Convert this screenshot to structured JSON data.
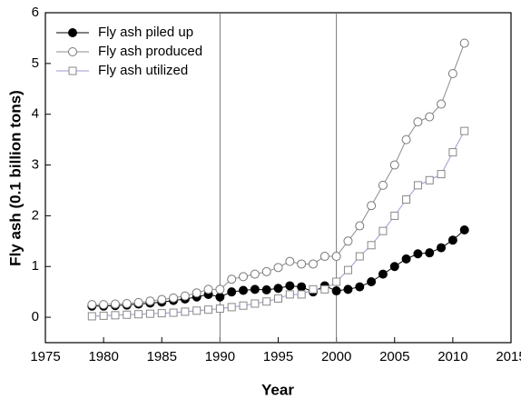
{
  "chart_data": {
    "type": "line",
    "x_label": "Year",
    "y_label": "Fly ash (0.1 billion tons)",
    "x": [
      1979,
      1980,
      1981,
      1982,
      1983,
      1984,
      1985,
      1986,
      1987,
      1988,
      1989,
      1990,
      1991,
      1992,
      1993,
      1994,
      1995,
      1996,
      1997,
      1998,
      1999,
      2000,
      2001,
      2002,
      2003,
      2004,
      2005,
      2006,
      2007,
      2008,
      2009,
      2010,
      2011
    ],
    "series": [
      {
        "name": "Fly ash piled up",
        "color": "#000000",
        "marker": "circle",
        "filled": true,
        "values": [
          0.22,
          0.22,
          0.23,
          0.24,
          0.26,
          0.28,
          0.3,
          0.33,
          0.36,
          0.4,
          0.45,
          0.4,
          0.5,
          0.53,
          0.55,
          0.54,
          0.57,
          0.62,
          0.6,
          0.5,
          0.62,
          0.52,
          0.55,
          0.6,
          0.7,
          0.85,
          1.0,
          1.15,
          1.25,
          1.27,
          1.37,
          1.52,
          1.72
        ]
      },
      {
        "name": "Fly ash produced",
        "color": "#8c8c8c",
        "marker": "circle",
        "filled": false,
        "values": [
          0.25,
          0.25,
          0.26,
          0.27,
          0.29,
          0.32,
          0.35,
          0.38,
          0.42,
          0.48,
          0.55,
          0.55,
          0.75,
          0.8,
          0.85,
          0.9,
          0.98,
          1.1,
          1.05,
          1.05,
          1.2,
          1.2,
          1.5,
          1.8,
          2.2,
          2.6,
          3.0,
          3.5,
          3.85,
          3.95,
          4.2,
          4.8,
          5.4
        ]
      },
      {
        "name": "Fly ash utilized",
        "color": "#9a9ad0",
        "marker": "square",
        "filled": false,
        "values": [
          0.02,
          0.03,
          0.04,
          0.05,
          0.06,
          0.07,
          0.08,
          0.09,
          0.11,
          0.13,
          0.15,
          0.17,
          0.2,
          0.23,
          0.27,
          0.31,
          0.37,
          0.45,
          0.45,
          0.55,
          0.55,
          0.7,
          0.93,
          1.2,
          1.42,
          1.7,
          2.0,
          2.32,
          2.6,
          2.7,
          2.82,
          3.25,
          3.67
        ]
      }
    ],
    "xlim": [
      1975,
      2015
    ],
    "xticks": [
      1975,
      1980,
      1985,
      1990,
      1995,
      2000,
      2005,
      2010,
      2015
    ],
    "ylim": [
      -0.5,
      6
    ],
    "yticks": [
      0,
      1,
      2,
      3,
      4,
      5,
      6
    ],
    "vlines": [
      1990,
      2000
    ],
    "legend": "upper-left"
  }
}
